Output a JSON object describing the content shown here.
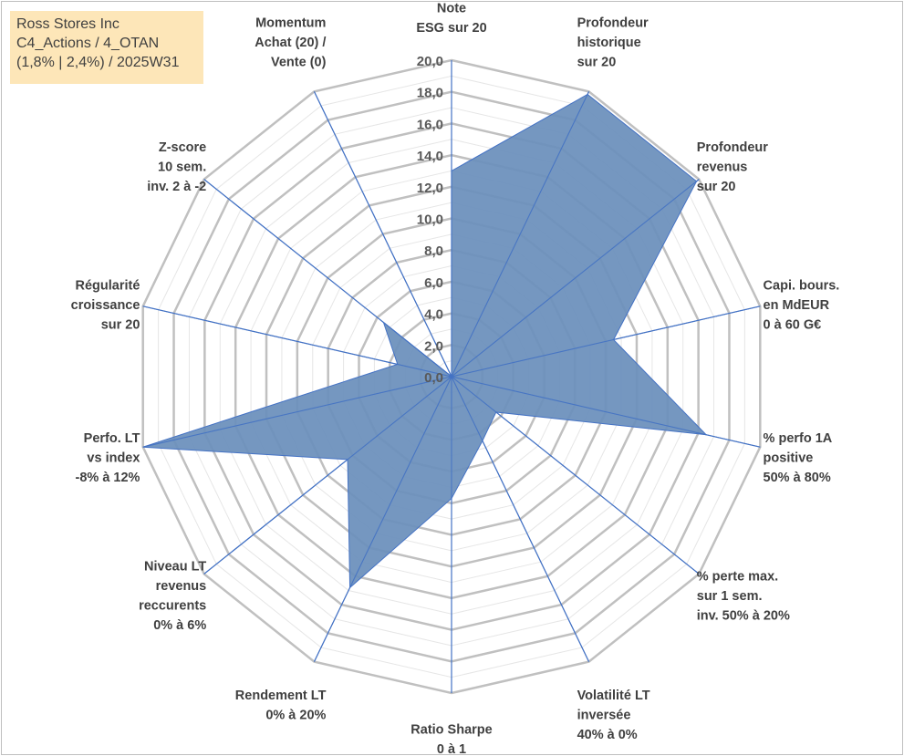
{
  "title_box": {
    "line1": "Ross Stores Inc",
    "line2": "C4_Actions / 4_OTAN",
    "line3": "(1,8% | 2,4%) / 2025W31",
    "background": "#fde6b8"
  },
  "chart_data": {
    "type": "radar",
    "rmin": 0,
    "rmax": 20,
    "tick_step": 2,
    "minor_step": 1,
    "grid": true,
    "tick_labels": [
      "0,0",
      "2,0",
      "4,0",
      "6,0",
      "8,0",
      "10,0",
      "12,0",
      "14,0",
      "16,0",
      "18,0",
      "20,0"
    ],
    "fill_color": "#6b8fbb",
    "line_color": "#4472c4",
    "grid_color": "#c0c0c0",
    "axes": [
      {
        "label": [
          "Note",
          "ESG sur 20"
        ],
        "value": 13.0
      },
      {
        "label": [
          "Profondeur",
          "historique",
          "sur 20"
        ],
        "value": 19.8
      },
      {
        "label": [
          "Profondeur",
          "revenus",
          "sur 20"
        ],
        "value": 19.8
      },
      {
        "label": [
          "Capi. bours.",
          "en MdEUR",
          "0 à 60 G€"
        ],
        "value": 10.5
      },
      {
        "label": [
          "% perfo 1A",
          "positive",
          "50% à 80%"
        ],
        "value": 16.5
      },
      {
        "label": [
          "% perte max.",
          "sur 1 sem.",
          "inv. 50% à 20%"
        ],
        "value": 3.6
      },
      {
        "label": [
          "Volatilité LT",
          "inversée",
          "40% à 0%"
        ],
        "value": 4.5
      },
      {
        "label": [
          "Ratio Sharpe",
          "0 à 1"
        ],
        "value": 7.7
      },
      {
        "label": [
          "Rendement LT",
          "0% à 20%"
        ],
        "value": 14.8
      },
      {
        "label": [
          "Niveau LT",
          "revenus",
          "reccurents",
          "0% à 6%"
        ],
        "value": 8.4
      },
      {
        "label": [
          "Perfo. LT",
          "vs index",
          "-8% à 12%"
        ],
        "value": 20.0
      },
      {
        "label": [
          "Régularité",
          "croissance",
          "sur 20"
        ],
        "value": 3.5
      },
      {
        "label": [
          "Z-score",
          "10 sem.",
          "inv. 2 à -2"
        ],
        "value": 5.5
      },
      {
        "label": [
          "Momentum",
          "Achat (20) /",
          "Vente (0)"
        ],
        "value": 0.0
      }
    ]
  }
}
